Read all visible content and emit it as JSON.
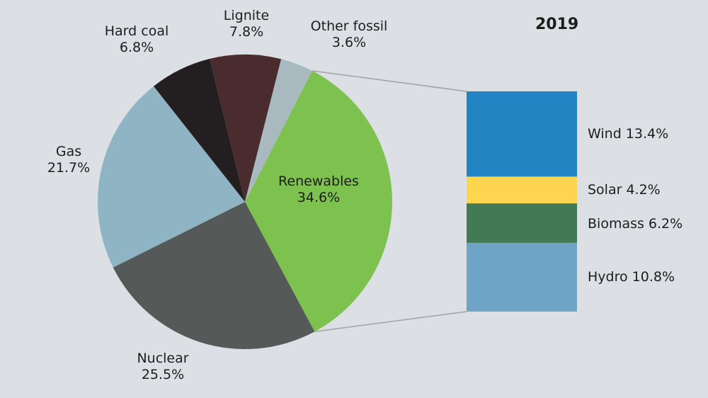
{
  "chart_data": [
    {
      "type": "pie",
      "title": "2019",
      "categories": [
        "Renewables",
        "Nuclear",
        "Gas",
        "Hard coal",
        "Lignite",
        "Other fossil"
      ],
      "values": [
        34.6,
        25.5,
        21.7,
        6.8,
        7.8,
        3.6
      ],
      "labels": [
        "34.6%",
        "25.5%",
        "21.7%",
        "6.8%",
        "7.8%",
        "3.6%"
      ],
      "colors": [
        "#7dc24e",
        "#555a58",
        "#8fb4c4",
        "#231f20",
        "#4a2c2f",
        "#a9b9c0"
      ]
    },
    {
      "type": "bar",
      "stacked": true,
      "categories": [
        "Wind",
        "Solar",
        "Biomass",
        "Hydro"
      ],
      "values": [
        13.4,
        4.2,
        6.2,
        10.8
      ],
      "labels": [
        "Wind 13.4%",
        "Solar 4.2%",
        "Biomass 6.2%",
        "Hydro 10.8%"
      ],
      "colors": [
        "#2384c4",
        "#fdd54f",
        "#417a55",
        "#6fa4c6"
      ]
    }
  ],
  "background": "#dcdfe3"
}
